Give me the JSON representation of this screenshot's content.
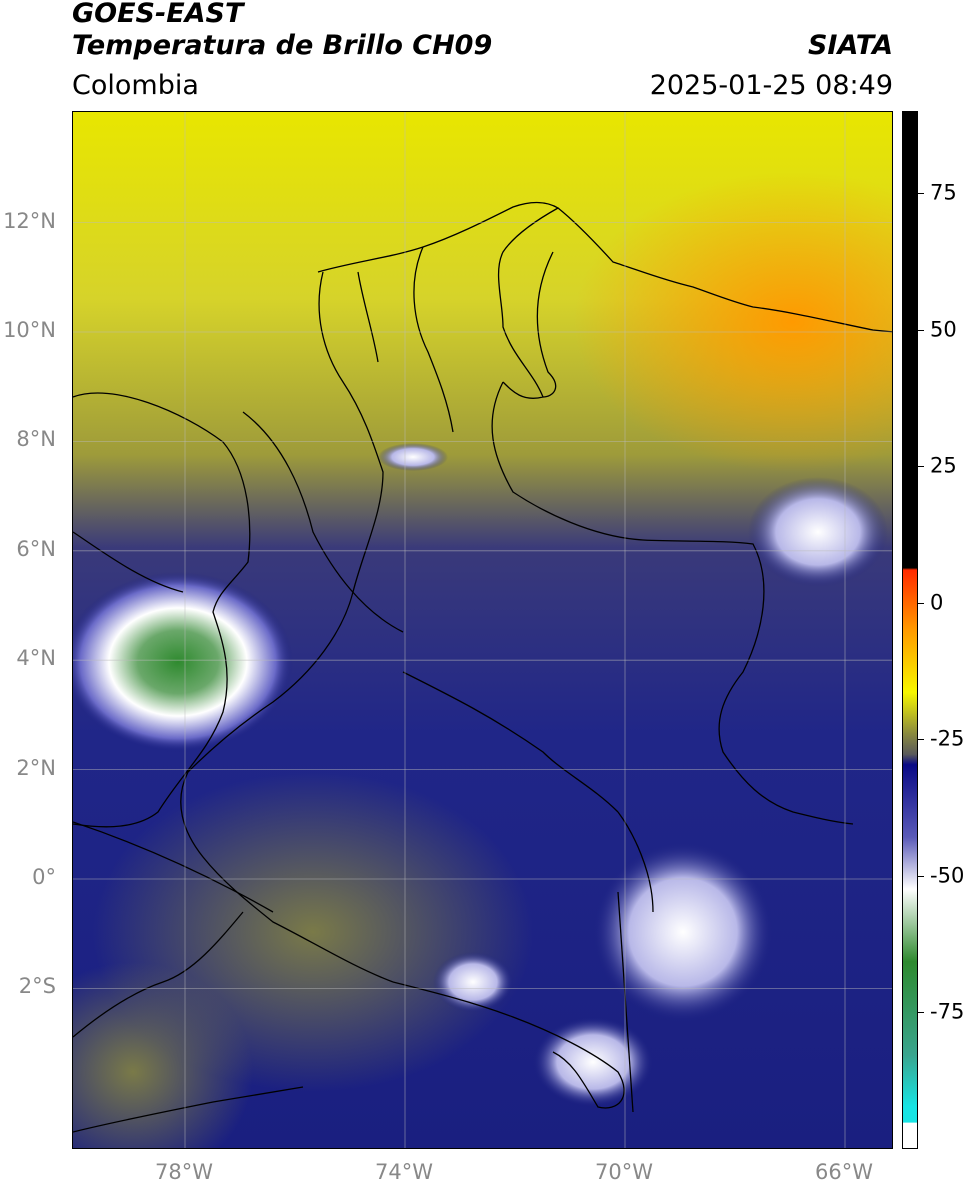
{
  "header": {
    "satellite": "GOES-EAST",
    "product": "Temperatura de Brillo CH09",
    "organization": "SIATA",
    "region": "Colombia",
    "timestamp": "2025-01-25 08:49"
  },
  "axes": {
    "lat_ticks": [
      {
        "label": "12°N",
        "value": 12
      },
      {
        "label": "10°N",
        "value": 10
      },
      {
        "label": "8°N",
        "value": 8
      },
      {
        "label": "6°N",
        "value": 6
      },
      {
        "label": "4°N",
        "value": 4
      },
      {
        "label": "2°N",
        "value": 2
      },
      {
        "label": "0°",
        "value": 0
      },
      {
        "label": "2°S",
        "value": -2
      }
    ],
    "lon_ticks": [
      {
        "label": "78°W",
        "value": -78
      },
      {
        "label": "74°W",
        "value": -74
      },
      {
        "label": "70°W",
        "value": -70
      },
      {
        "label": "66°W",
        "value": -66
      }
    ],
    "lat_range": [
      -5,
      14
    ],
    "lon_range": [
      -80,
      -65
    ]
  },
  "colorbar": {
    "ticks": [
      {
        "label": "75",
        "value": 75
      },
      {
        "label": "50",
        "value": 50
      },
      {
        "label": "25",
        "value": 25
      },
      {
        "label": "0",
        "value": 0
      },
      {
        "label": "-25",
        "value": -25
      },
      {
        "label": "-50",
        "value": -50
      },
      {
        "label": "-75",
        "value": -75
      }
    ],
    "range": [
      -100,
      90
    ],
    "colors": {
      "black": "#000000",
      "red": "#ff2a00",
      "orange": "#ff9a00",
      "yellow": "#f7f700",
      "olive": "#8a8a3e",
      "navy": "#0a0a86",
      "white": "#ffffff",
      "green": "#2e8a2e",
      "cyan": "#17e4e4"
    }
  }
}
